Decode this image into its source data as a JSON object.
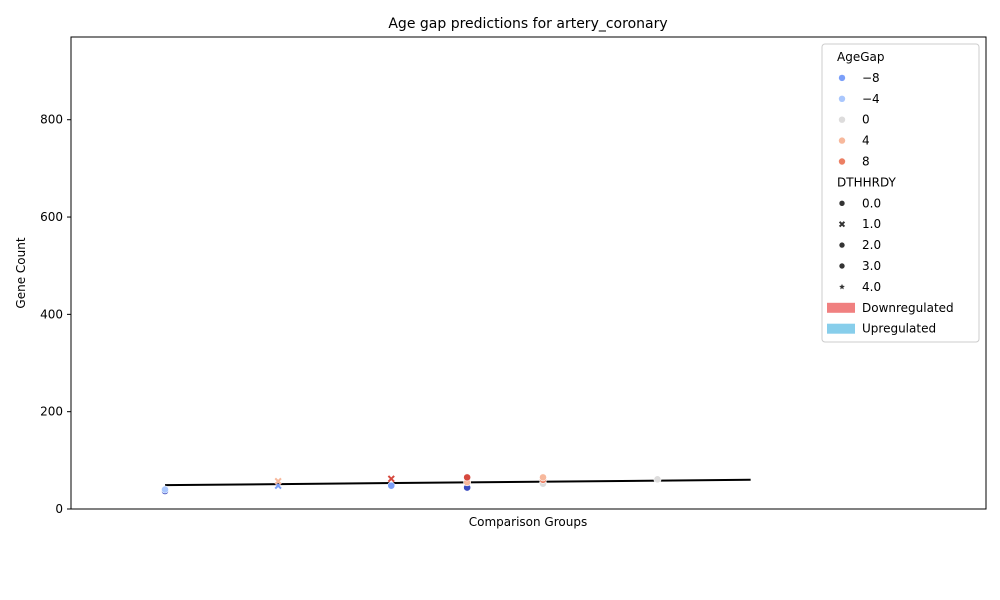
{
  "chart_data": {
    "type": "scatter",
    "title": "Age gap predictions for artery_coronary",
    "xlabel": "Comparison Groups",
    "ylabel": "Gene Count",
    "ylim": [
      0,
      970
    ],
    "yticks": [
      0,
      200,
      400,
      600,
      800
    ],
    "x_categories": [],
    "grid": false,
    "legend_position": "top-right",
    "legend": {
      "hue_title": "AgeGap",
      "hue_entries": [
        {
          "label": "−8",
          "color": "#7b9ff9"
        },
        {
          "label": "−4",
          "color": "#aac7fd"
        },
        {
          "label": "0",
          "color": "#dddcdc"
        },
        {
          "label": "4",
          "color": "#f7b89c"
        },
        {
          "label": "8",
          "color": "#ec7f63"
        }
      ],
      "style_title": "DTHHRDY",
      "style_entries": [
        {
          "label": "0.0",
          "marker": "circle"
        },
        {
          "label": "1.0",
          "marker": "x"
        },
        {
          "label": "2.0",
          "marker": "circle"
        },
        {
          "label": "3.0",
          "marker": "circle"
        },
        {
          "label": "4.0",
          "marker": "star"
        }
      ],
      "bar_entries": [
        {
          "label": "Downregulated",
          "color": "#f08080"
        },
        {
          "label": "Upregulated",
          "color": "#87ceeb"
        }
      ]
    },
    "trend_line": {
      "x": [
        0,
        4.4
      ],
      "y": [
        49,
        60
      ],
      "color": "#000000"
    },
    "points": [
      {
        "x": 0.0,
        "y": 37,
        "color": "#3b4cc0",
        "marker": "circle"
      },
      {
        "x": 0.0,
        "y": 40,
        "color": "#aac7fd",
        "marker": "circle"
      },
      {
        "x": 0.85,
        "y": 48,
        "color": "#7b9ff9",
        "marker": "x"
      },
      {
        "x": 0.85,
        "y": 57,
        "color": "#f7b89c",
        "marker": "x"
      },
      {
        "x": 1.7,
        "y": 48,
        "color": "#7b9ff9",
        "marker": "circle"
      },
      {
        "x": 1.7,
        "y": 62,
        "color": "#d6493e",
        "marker": "x"
      },
      {
        "x": 2.27,
        "y": 44,
        "color": "#3b4cc0",
        "marker": "circle"
      },
      {
        "x": 2.27,
        "y": 55,
        "color": "#f7b89c",
        "marker": "circle"
      },
      {
        "x": 2.27,
        "y": 65,
        "color": "#d6493e",
        "marker": "circle"
      },
      {
        "x": 2.84,
        "y": 52,
        "color": "#dddcdc",
        "marker": "circle"
      },
      {
        "x": 2.84,
        "y": 60,
        "color": "#ec7f63",
        "marker": "circle"
      },
      {
        "x": 2.84,
        "y": 65,
        "color": "#f7b89c",
        "marker": "circle"
      },
      {
        "x": 3.7,
        "y": 61,
        "color": "#dddcdc",
        "marker": "circle"
      }
    ]
  }
}
